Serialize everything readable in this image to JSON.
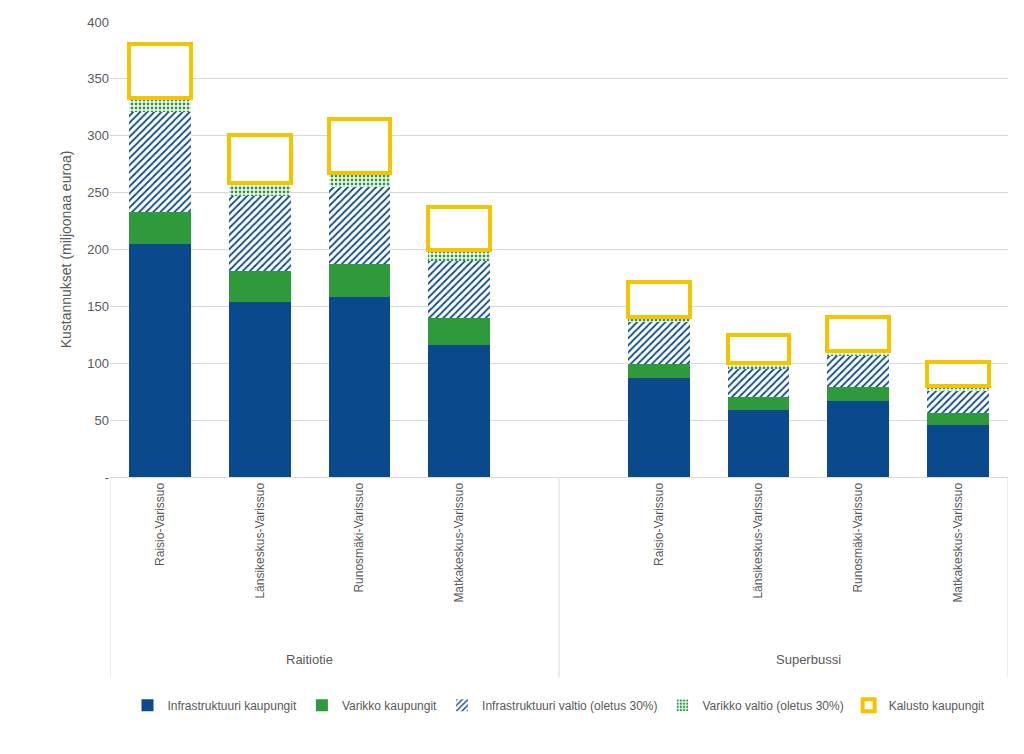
{
  "chart_data": {
    "type": "bar",
    "stacked": true,
    "grid": true,
    "legend": "bottom",
    "y_label": "Kustannukset (miljoonaa euroa)",
    "categories": [
      "Raisio-Varissuo",
      "Länsikeskus-Varissuo",
      "Runosmäki-Varissuo",
      "Matkakeskus-Varissuo",
      "Raisio-Varissuo",
      "Länsikeskus-Varissuo",
      "Runosmäki-Varissuo",
      "Matkakeskus-Varissuo"
    ],
    "category_groups": [
      "Raitiotie",
      "Raitiotie",
      "Raitiotie",
      "Raitiotie",
      "Superbussi",
      "Superbussi",
      "Superbussi",
      "Superbussi"
    ],
    "ylim": [
      0,
      400
    ],
    "yticks": [
      {
        "value": 0,
        "label": "-"
      },
      50,
      100,
      150,
      200,
      250,
      300,
      350,
      400
    ],
    "series": [
      {
        "name": "Infrastruktuuri kaupungit",
        "color": "#0a4a8c",
        "marker": "solid",
        "values": [
          205,
          154,
          158,
          116,
          87,
          59,
          67,
          46
        ]
      },
      {
        "name": "Varikko kaupungit",
        "color": "#2e9a3c",
        "marker": "solid",
        "values": [
          28,
          27,
          29,
          24,
          12,
          11,
          12,
          10
        ]
      },
      {
        "name": "Infrastruktuuri valtio (oletus 30%)",
        "color": "#0a4a8c",
        "marker": "hatch",
        "values": [
          88,
          66,
          68,
          50,
          37,
          25,
          27,
          20
        ]
      },
      {
        "name": "Varikko valtio (oletus 30%)",
        "color": "#2e9a3c",
        "marker": "dots",
        "values": [
          12,
          11.5,
          12,
          10,
          5,
          5,
          5,
          4
        ]
      },
      {
        "name": "Kalusto kaupungit",
        "color": "#f5c400",
        "marker": "outline",
        "values": [
          48,
          42,
          48,
          37,
          30,
          25,
          30,
          21
        ]
      }
    ]
  }
}
